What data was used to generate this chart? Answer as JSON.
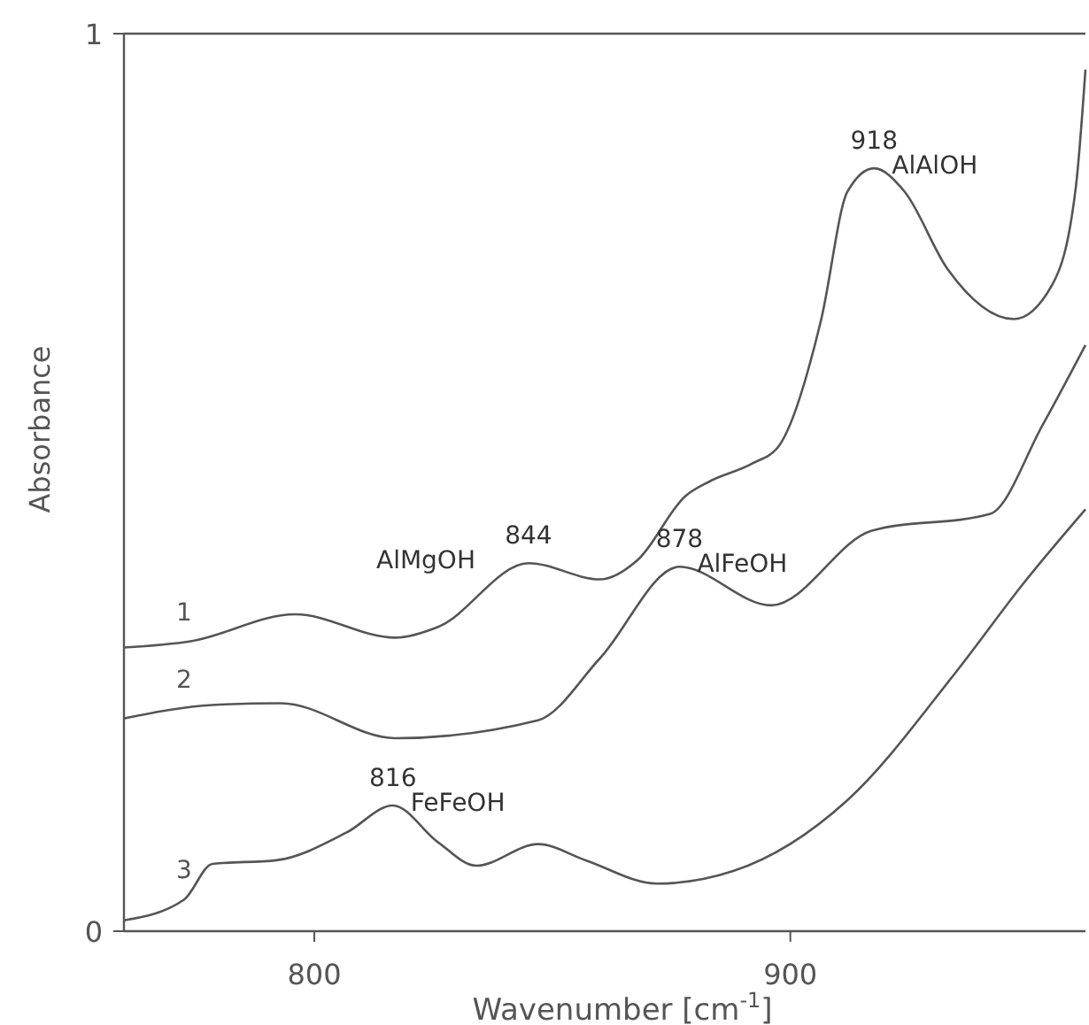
{
  "chart_data": {
    "type": "line",
    "xlabel": "Wavenumber [cm$^{-1}$]",
    "ylabel": "Absorbance",
    "xlim": [
      760,
      962
    ],
    "xticks": [
      800,
      900
    ],
    "ylim": [
      0,
      1
    ],
    "yticks": [
      0,
      1
    ],
    "grid": false,
    "marker": "none",
    "line_style": "solid",
    "series": [
      {
        "name": "1",
        "color": "#555555",
        "x": [
          760,
          774,
          796,
          817,
          826,
          845,
          860,
          868,
          878,
          883,
          892,
          897.5,
          906.5,
          912,
          917.6,
          924,
          933,
          947,
          955,
          960,
          962
        ],
        "values": [
          0.316,
          0.323,
          0.353,
          0.327,
          0.339,
          0.41,
          0.392,
          0.414,
          0.485,
          0.501,
          0.521,
          0.54,
          0.682,
          0.824,
          0.85,
          0.824,
          0.738,
          0.682,
          0.72,
          0.83,
          0.96
        ]
      },
      {
        "name": "2",
        "color": "#555555",
        "x": [
          760,
          778.6,
          793,
          817,
          847,
          860,
          876.7,
          896,
          917,
          942,
          953,
          962
        ],
        "values": [
          0.237,
          0.252,
          0.254,
          0.215,
          0.235,
          0.304,
          0.406,
          0.363,
          0.446,
          0.465,
          0.564,
          0.653
        ]
      },
      {
        "name": "3",
        "color": "#555555",
        "x": [
          760,
          772.6,
          778.6,
          792,
          806.8,
          816.5,
          826,
          834,
          847,
          857,
          872,
          888,
          912,
          934.7,
          949.5,
          962
        ],
        "values": [
          0.012,
          0.035,
          0.075,
          0.079,
          0.11,
          0.14,
          0.099,
          0.073,
          0.097,
          0.079,
          0.053,
          0.067,
          0.146,
          0.288,
          0.391,
          0.47
        ]
      }
    ],
    "annotations": [
      {
        "text": "918",
        "x": 917.6,
        "y": 0.85
      },
      {
        "text": "AlAlOH",
        "x": 917.6,
        "y": 0.85
      },
      {
        "text": "AlMgOH",
        "x": 845,
        "y": 0.41
      },
      {
        "text": "844",
        "x": 845,
        "y": 0.41
      },
      {
        "text": "878",
        "x": 876.7,
        "y": 0.406
      },
      {
        "text": "AlFeOH",
        "x": 876.7,
        "y": 0.406
      },
      {
        "text": "816",
        "x": 816.5,
        "y": 0.14
      },
      {
        "text": "FeFeOH",
        "x": 816.5,
        "y": 0.14
      }
    ]
  }
}
